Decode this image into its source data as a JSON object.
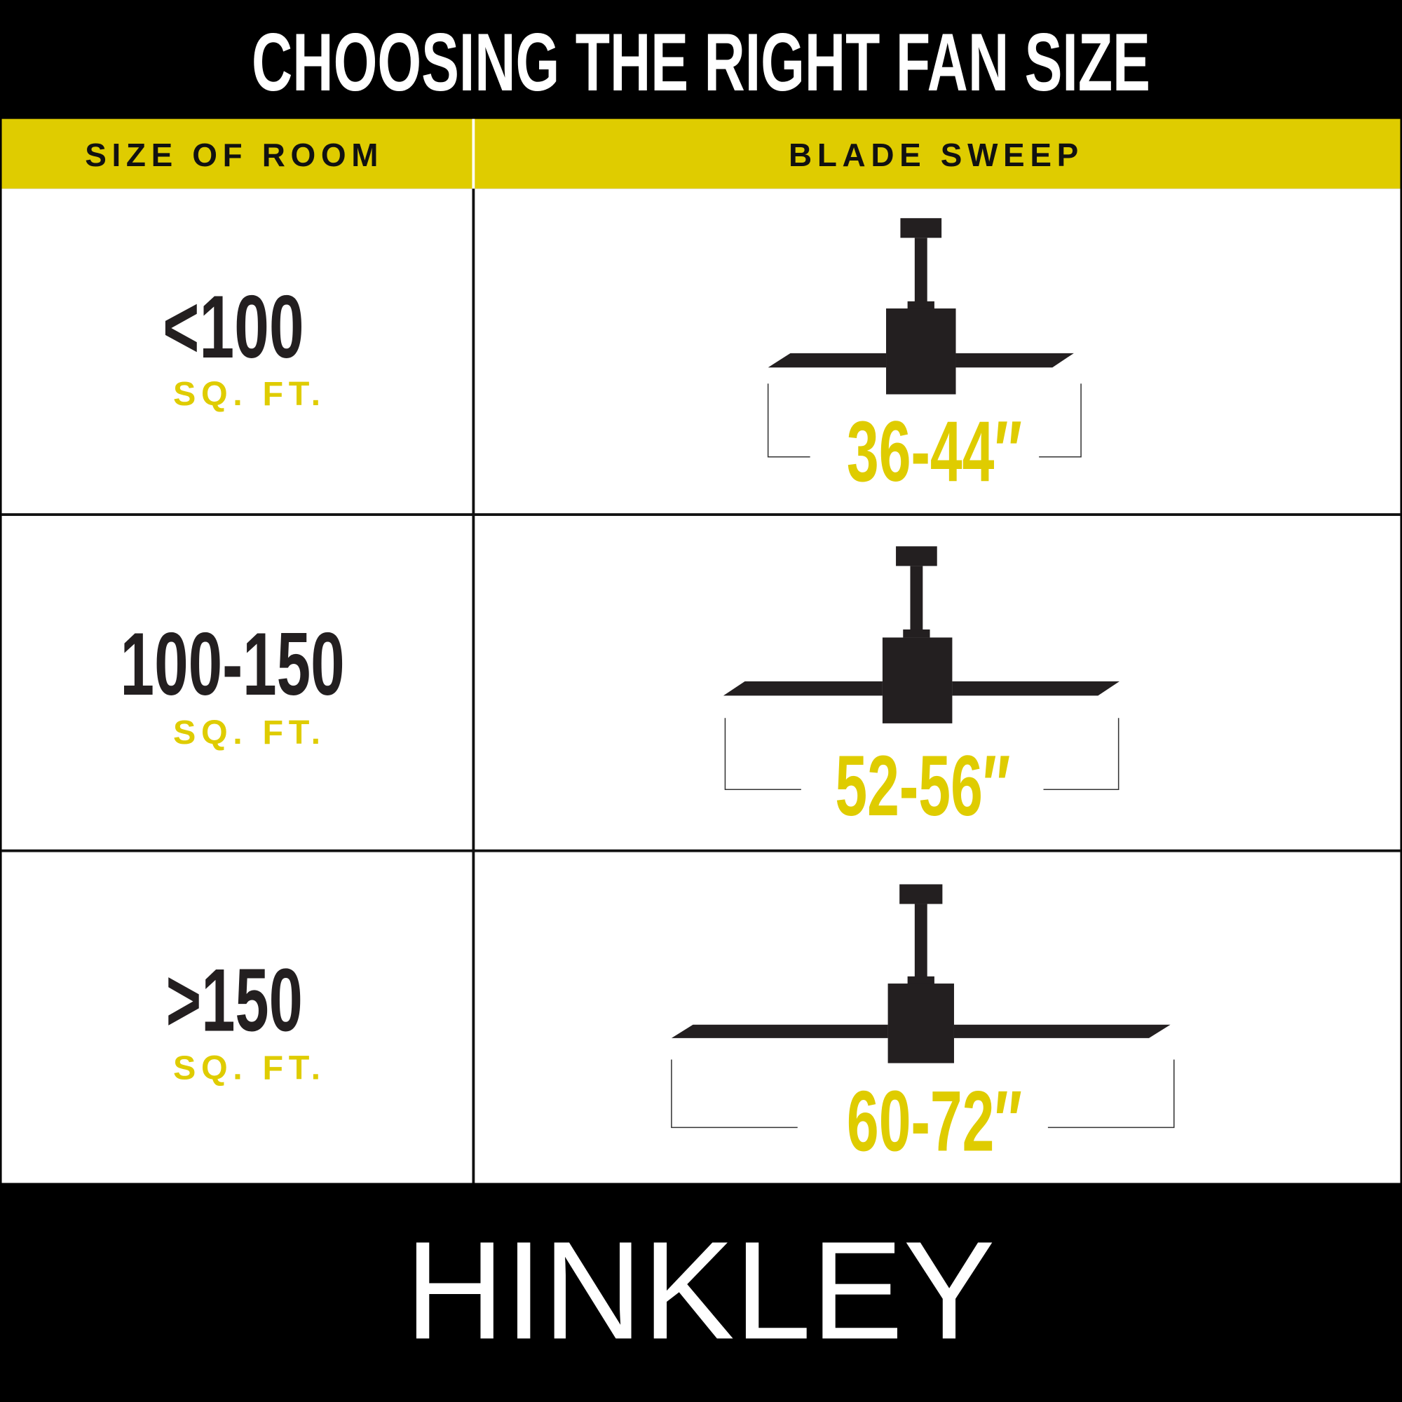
{
  "title": "CHOOSING THE RIGHT FAN SIZE",
  "headers": {
    "room": "SIZE OF ROOM",
    "sweep": "BLADE SWEEP"
  },
  "rows": [
    {
      "room": "<100",
      "unit": "SQ. FT.",
      "sweep": "36-44″"
    },
    {
      "room": "100-150",
      "unit": "SQ. FT.",
      "sweep": "52-56″"
    },
    {
      "room": ">150",
      "unit": "SQ. FT.",
      "sweep": "60-72″"
    }
  ],
  "brand": "HINKLEY",
  "colors": {
    "accent": "#DFCC00",
    "dark": "#231F20",
    "background": "#000000"
  }
}
